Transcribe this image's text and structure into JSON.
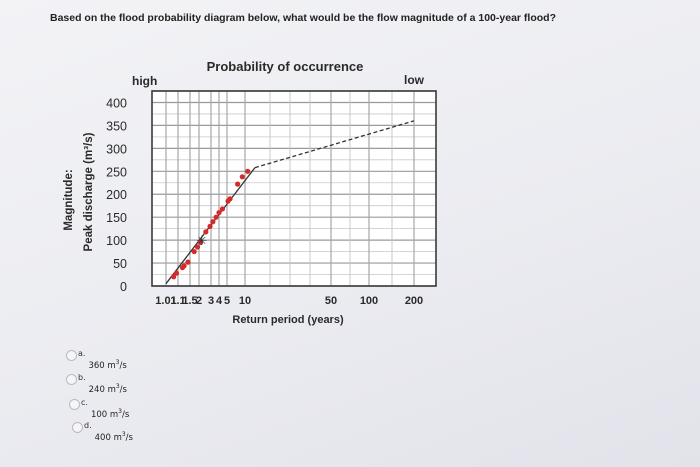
{
  "question": {
    "text": "Based on the flood probability diagram below, what would be the flow magnitude of a 100-year flood?"
  },
  "options": [
    {
      "letter": "a.",
      "value": "360",
      "unit_base": "m",
      "unit_exp": "3",
      "unit_tail": "/s"
    },
    {
      "letter": "b.",
      "value": "240",
      "unit_base": "m",
      "unit_exp": "3",
      "unit_tail": "/s"
    },
    {
      "letter": "c.",
      "value": "100",
      "unit_base": "m",
      "unit_exp": "3",
      "unit_tail": "/s"
    },
    {
      "letter": "d.",
      "value": "400",
      "unit_base": "m",
      "unit_exp": "3",
      "unit_tail": "/s"
    }
  ],
  "chart_data": {
    "type": "scatter",
    "title": "Probability of occurrence",
    "top_left_label": "high",
    "top_right_label": "low",
    "xlabel": "Return period (years)",
    "ylabel_line1": "Magnitude:",
    "ylabel_line2": "Peak discharge (m³/s)",
    "x_tick_labels": [
      "1.01",
      "1.1",
      "1.5",
      "2",
      "3",
      "4",
      "5",
      "10",
      "50",
      "100",
      "200"
    ],
    "y_ticks": [
      0,
      50,
      100,
      150,
      200,
      250,
      300,
      350,
      400
    ],
    "ylim": [
      0,
      425
    ],
    "grid": true,
    "series": [
      {
        "kind": "points",
        "color": "#d42a2a",
        "points": [
          [
            1.05,
            20
          ],
          [
            1.08,
            28
          ],
          [
            1.2,
            40
          ],
          [
            1.25,
            44
          ],
          [
            1.4,
            52
          ],
          [
            1.7,
            75
          ],
          [
            1.9,
            85
          ],
          [
            2.1,
            95
          ],
          [
            2.5,
            118
          ],
          [
            2.9,
            130
          ],
          [
            3.2,
            140
          ],
          [
            3.6,
            150
          ],
          [
            4.0,
            160
          ],
          [
            4.4,
            168
          ],
          [
            5.2,
            185
          ],
          [
            5.6,
            190
          ],
          [
            7.5,
            222
          ],
          [
            9.0,
            238
          ],
          [
            10.5,
            250
          ]
        ]
      },
      {
        "kind": "fit_solid",
        "color": "#333333",
        "points": [
          [
            1.01,
            5
          ],
          [
            12,
            258
          ]
        ]
      },
      {
        "kind": "fit_dashed",
        "color": "#333333",
        "points": [
          [
            12,
            258
          ],
          [
            200,
            360
          ]
        ]
      }
    ],
    "annotation": {
      "glyph": "✳",
      "x": 2.2,
      "y": 100
    }
  }
}
